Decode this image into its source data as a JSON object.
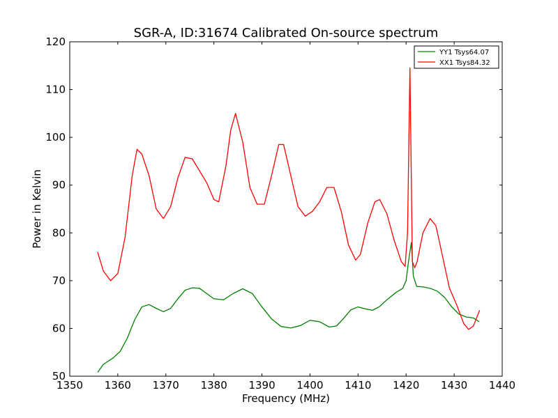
{
  "chart_data": {
    "type": "line",
    "title": "SGR-A, ID:31674 Calibrated On-source spectrum",
    "xlabel": "Frequency (MHz)",
    "ylabel": "Power in Kelvin",
    "xlim": [
      1350,
      1440
    ],
    "ylim": [
      50,
      120
    ],
    "xticks": [
      1350,
      1360,
      1370,
      1380,
      1390,
      1400,
      1410,
      1420,
      1430,
      1440
    ],
    "yticks": [
      50,
      60,
      70,
      80,
      90,
      100,
      110,
      120
    ],
    "grid": false,
    "legend_position": "top-right",
    "series": [
      {
        "name": "YY1 Tsys64.07",
        "color": "#008000",
        "x": [
          1355.8,
          1357,
          1359,
          1360.5,
          1362,
          1363.5,
          1365,
          1366.5,
          1368,
          1369.5,
          1371,
          1372.5,
          1374,
          1375.5,
          1377,
          1378.5,
          1380,
          1382,
          1384,
          1386,
          1388,
          1390,
          1392,
          1394,
          1396,
          1398,
          1400,
          1402,
          1404,
          1405.5,
          1407,
          1408.5,
          1410,
          1411.5,
          1413,
          1414.5,
          1416,
          1418,
          1419.3,
          1420,
          1420.5,
          1421.1,
          1421.5,
          1422.2,
          1423.5,
          1425,
          1426.5,
          1428,
          1429.5,
          1431,
          1432.5,
          1434,
          1435.2
        ],
        "y": [
          50.8,
          52.5,
          53.8,
          55.2,
          58.0,
          61.8,
          64.5,
          65.0,
          64.2,
          63.5,
          64.2,
          66.2,
          68.0,
          68.5,
          68.4,
          67.3,
          66.2,
          66.0,
          67.3,
          68.3,
          67.3,
          64.5,
          62.0,
          60.4,
          60.1,
          60.6,
          61.7,
          61.4,
          60.3,
          60.5,
          62.1,
          63.9,
          64.5,
          64.1,
          63.8,
          64.6,
          66.0,
          67.6,
          68.4,
          70.0,
          74.0,
          78.0,
          71.0,
          68.8,
          68.7,
          68.4,
          67.8,
          66.5,
          64.5,
          63.0,
          62.4,
          62.2,
          61.4
        ]
      },
      {
        "name": "XX1 Tsys84.32",
        "color": "#ff0000",
        "x": [
          1355.8,
          1357,
          1358.5,
          1360,
          1361.5,
          1363,
          1364,
          1365,
          1366.5,
          1368,
          1369.5,
          1371,
          1372.5,
          1374,
          1375.5,
          1377,
          1378.5,
          1380,
          1381,
          1382.5,
          1383.5,
          1384.5,
          1386,
          1387.5,
          1389,
          1390.5,
          1392,
          1393.5,
          1394.5,
          1396,
          1397.5,
          1399,
          1400.5,
          1402,
          1403.5,
          1405,
          1406.5,
          1408,
          1409.5,
          1410.5,
          1412,
          1413.5,
          1414.5,
          1416,
          1417.5,
          1419,
          1419.8,
          1420.3,
          1420.8,
          1421.3,
          1421.8,
          1422.3,
          1423.5,
          1425,
          1426.2,
          1427.5,
          1429,
          1430.5,
          1432,
          1433,
          1434,
          1435.3
        ],
        "y": [
          76.0,
          72.0,
          70.0,
          71.5,
          79.0,
          92.0,
          97.5,
          96.5,
          92.0,
          85.0,
          83.0,
          85.5,
          91.5,
          95.8,
          95.5,
          93.0,
          90.5,
          87.0,
          86.5,
          94.0,
          101.5,
          105.0,
          99.0,
          89.5,
          86.0,
          86.0,
          92.0,
          98.5,
          98.5,
          92.0,
          85.5,
          83.5,
          84.5,
          86.5,
          89.5,
          89.5,
          84.5,
          77.5,
          74.3,
          75.5,
          82.0,
          86.5,
          87.0,
          84.0,
          78.5,
          74.0,
          73.0,
          80.0,
          114.5,
          74.0,
          72.7,
          74.0,
          80.0,
          83.0,
          81.5,
          75.5,
          68.5,
          65.0,
          61.0,
          59.8,
          60.5,
          63.8
        ]
      }
    ]
  }
}
